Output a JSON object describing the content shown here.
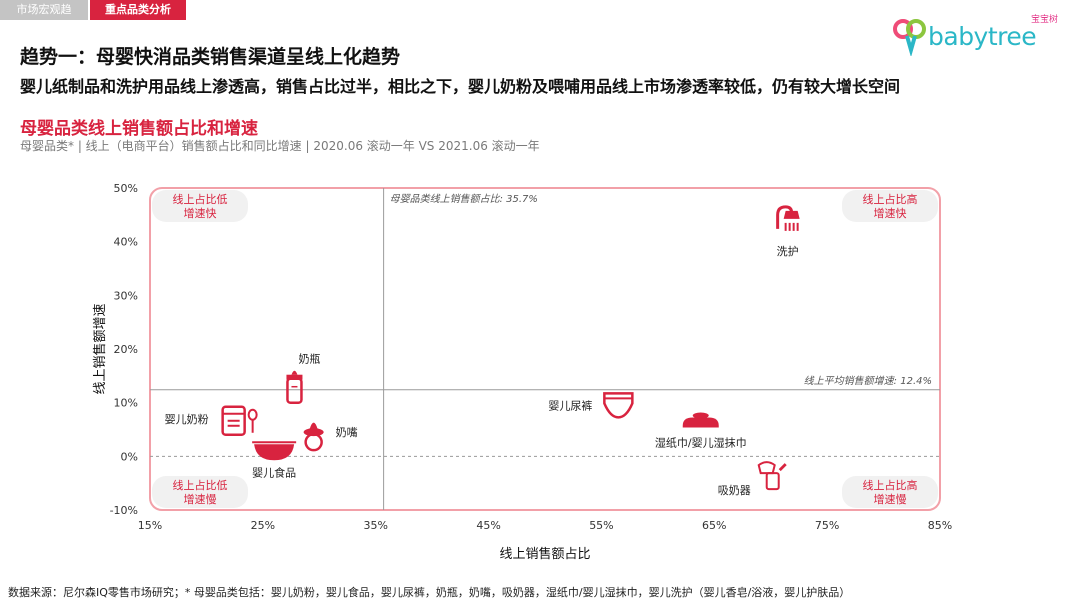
{
  "tabs": [
    "市场宏观趋势",
    "重点品类分析"
  ],
  "logo": {
    "text": "babytree",
    "cn": "宝宝树"
  },
  "headline": "趋势一：母婴快消品类销售渠道呈线上化趋势",
  "subline": "婴儿纸制品和洗护用品线上渗透高，销售占比过半，相比之下，婴儿奶粉及喂哺用品线上市场渗透率较低，仍有较大增长空间",
  "chart_title": "母婴品类线上销售额占比和增速",
  "chart_subtitle": "母婴品类* | 线上（电商平台）销售额占比和同比增速 | 2020.06 滚动一年 VS 2021.06 滚动一年",
  "footer": "数据来源：尼尔森IQ零售市场研究；* 母婴品类包括：婴儿奶粉，婴儿食品，婴儿尿裤，奶瓶，奶嘴，吸奶器，湿纸巾/婴儿湿抹巾，婴儿洗护（婴儿香皂/浴液，婴儿护肤品）",
  "colors": {
    "accent": "#d8233f",
    "quad_border": "#f2a0a8",
    "label_bg": "#f1f1f1",
    "label_text": "#d8233f",
    "brand": "#2bb7c7"
  },
  "chart_data": {
    "type": "scatter",
    "xlabel": "线上销售额占比",
    "ylabel": "线上销售额增速",
    "xlim": [
      15,
      85
    ],
    "ylim": [
      -10,
      50
    ],
    "x_ticks": [
      "15%",
      "25%",
      "35%",
      "45%",
      "55%",
      "65%",
      "75%",
      "85%"
    ],
    "y_ticks": [
      "50%",
      "40%",
      "30%",
      "20%",
      "10%",
      "0%",
      "-10%"
    ],
    "ref_lines": {
      "x": {
        "value": 35.7,
        "label": "母婴品类线上销售额占比: 35.7%"
      },
      "y": {
        "value": 12.4,
        "label": "线上平均销售额增速: 12.4%"
      }
    },
    "quadrant_labels": {
      "top_left": [
        "线上占比低",
        "增速快"
      ],
      "top_right": [
        "线上占比高",
        "增速快"
      ],
      "bottom_left": [
        "线上占比低",
        "增速慢"
      ],
      "bottom_right": [
        "线上占比高",
        "增速慢"
      ]
    },
    "points": [
      {
        "name": "洗护",
        "x": 71.5,
        "y": 43.5,
        "icon": "shower-icon",
        "label_pos": "below"
      },
      {
        "name": "奶瓶",
        "x": 27.8,
        "y": 12.6,
        "icon": "baby-bottle-icon",
        "label_pos": "above-right"
      },
      {
        "name": "婴儿奶粉",
        "x": 22.5,
        "y": 7.0,
        "icon": "formula-can-icon",
        "label_pos": "left"
      },
      {
        "name": "奶嘴",
        "x": 29.5,
        "y": 4.5,
        "icon": "pacifier-icon",
        "label_pos": "right"
      },
      {
        "name": "婴儿食品",
        "x": 26.0,
        "y": 1.5,
        "icon": "food-bowl-icon",
        "label_pos": "below"
      },
      {
        "name": "婴儿尿裤",
        "x": 56.5,
        "y": 9.5,
        "icon": "diaper-icon",
        "label_pos": "left"
      },
      {
        "name": "湿纸巾/婴儿湿抹巾",
        "x": 63.8,
        "y": 6.5,
        "icon": "wet-wipes-icon",
        "label_pos": "below"
      },
      {
        "name": "吸奶器",
        "x": 70.0,
        "y": -3.5,
        "icon": "breast-pump-icon",
        "label_pos": "below-left"
      }
    ]
  }
}
